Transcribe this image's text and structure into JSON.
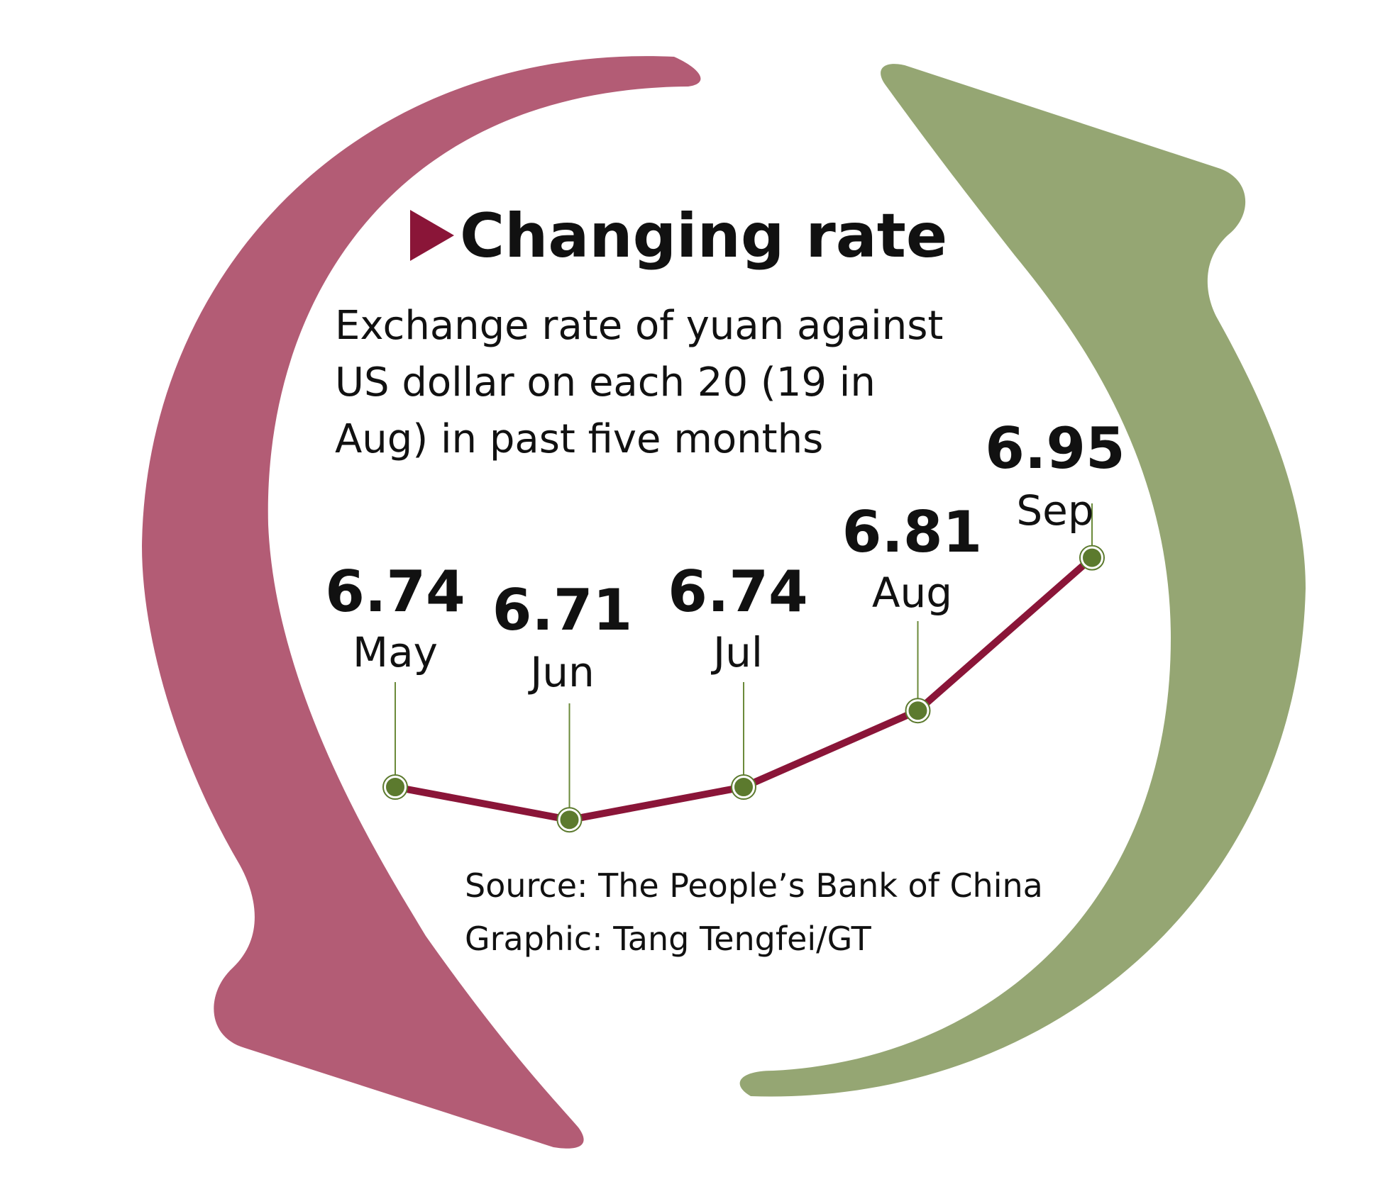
{
  "title": "Changing rate",
  "subtitle_lines": [
    "Exchange rate of yuan against",
    "US dollar on each 20 (19 in",
    "Aug) in past five months"
  ],
  "source": "Source: The People’s Bank of China",
  "credit": "Graphic: Tang Tengfei/GT",
  "colors": {
    "left_arrow": "#b35c75",
    "right_arrow": "#95a673",
    "line": "#8a1538",
    "marker_fill": "#5c7a2e",
    "leader_line": "#6b8a3a",
    "title_triangle": "#8a1538",
    "text": "#111111"
  },
  "chart_data": {
    "type": "line",
    "title": "Changing rate",
    "subtitle": "Exchange rate of yuan against US dollar on each 20 (19 in Aug) in past five months",
    "categories": [
      "May",
      "Jun",
      "Jul",
      "Aug",
      "Sep"
    ],
    "values": [
      6.74,
      6.71,
      6.74,
      6.81,
      6.95
    ],
    "value_labels": [
      "6.74",
      "6.71",
      "6.74",
      "6.81",
      "6.95"
    ],
    "ylim": [
      6.6,
      7.0
    ],
    "grid": false,
    "legend": "none",
    "xlabel": "",
    "ylabel": ""
  }
}
